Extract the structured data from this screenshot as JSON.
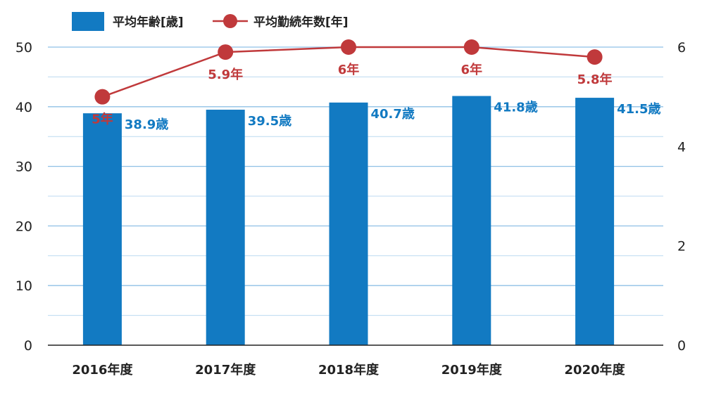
{
  "chart_data": {
    "type": "bar",
    "categories": [
      "2016年度",
      "2017年度",
      "2018年度",
      "2019年度",
      "2020年度"
    ],
    "series": [
      {
        "name": "平均年齢[歳]",
        "type": "bar",
        "axis": "left",
        "values": [
          38.9,
          39.5,
          40.7,
          41.8,
          41.5
        ],
        "labels": [
          "38.9歳",
          "39.5歳",
          "40.7歳",
          "41.8歳",
          "41.5歳"
        ],
        "color": "#127ac2"
      },
      {
        "name": "平均勤続年数[年]",
        "type": "line",
        "axis": "right",
        "values": [
          5,
          5.9,
          6,
          6,
          5.8
        ],
        "labels": [
          "5年",
          "5.9年",
          "6年",
          "6年",
          "5.8年"
        ],
        "color": "#c0393b"
      }
    ],
    "ylim_left": [
      0,
      50
    ],
    "yticks_left": [
      "0",
      "10",
      "20",
      "30",
      "40",
      "50"
    ],
    "ylim_right": [
      0,
      6
    ],
    "yticks_right": [
      "0",
      "2",
      "4",
      "6"
    ],
    "grid": true,
    "legend_position": "top-left"
  }
}
